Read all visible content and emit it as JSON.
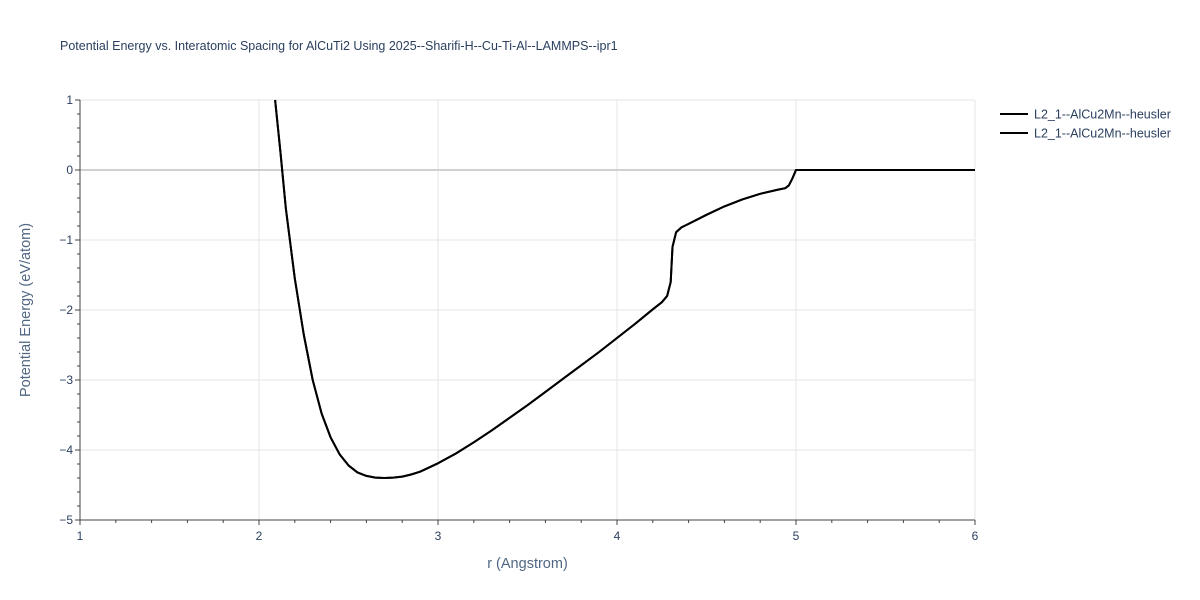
{
  "chart_data": {
    "type": "line",
    "title": "Potential Energy vs. Interatomic Spacing for AlCuTi2 Using 2025--Sharifi-H--Cu-Ti-Al--LAMMPS--ipr1",
    "xlabel": "r (Angstrom)",
    "ylabel": "Potential Energy (eV/atom)",
    "xlim": [
      1,
      6
    ],
    "ylim": [
      -5,
      1
    ],
    "xticks": [
      1,
      2,
      3,
      4,
      5,
      6
    ],
    "yticks": [
      1,
      0,
      -1,
      -2,
      -3,
      -4,
      -5
    ],
    "xtick_labels": [
      "1",
      "2",
      "3",
      "4",
      "5",
      "6"
    ],
    "ytick_labels": [
      "1",
      "0",
      "−1",
      "−2",
      "−3",
      "−4",
      "−5"
    ],
    "grid": true,
    "legend_position": "top-right",
    "series": [
      {
        "name": "L2_1--AlCu2Mn--heusler",
        "color": "#000000",
        "x": [
          2.09,
          2.12,
          2.15,
          2.2,
          2.25,
          2.3,
          2.35,
          2.4,
          2.45,
          2.5,
          2.55,
          2.6,
          2.65,
          2.7,
          2.75,
          2.8,
          2.85,
          2.9,
          3.0,
          3.1,
          3.2,
          3.3,
          3.4,
          3.5,
          3.6,
          3.7,
          3.8,
          3.9,
          4.0,
          4.1,
          4.2,
          4.25,
          4.28,
          4.3,
          4.31,
          4.33,
          4.36,
          4.4,
          4.5,
          4.6,
          4.7,
          4.8,
          4.9,
          4.94,
          4.96,
          4.98,
          5.0,
          5.5,
          6.0
        ],
        "y": [
          1.0,
          0.25,
          -0.55,
          -1.55,
          -2.35,
          -3.0,
          -3.48,
          -3.82,
          -4.06,
          -4.22,
          -4.32,
          -4.37,
          -4.395,
          -4.4,
          -4.395,
          -4.38,
          -4.35,
          -4.31,
          -4.19,
          -4.05,
          -3.89,
          -3.72,
          -3.54,
          -3.36,
          -3.17,
          -2.98,
          -2.79,
          -2.6,
          -2.4,
          -2.2,
          -1.99,
          -1.89,
          -1.8,
          -1.6,
          -1.1,
          -0.89,
          -0.82,
          -0.77,
          -0.64,
          -0.52,
          -0.42,
          -0.34,
          -0.28,
          -0.26,
          -0.22,
          -0.12,
          0.0,
          0.0,
          0.0
        ]
      },
      {
        "name": "L2_1--AlCu2Mn--heusler",
        "color": "#000000",
        "x": [
          2.09,
          2.12,
          2.15,
          2.2,
          2.25,
          2.3,
          2.35,
          2.4,
          2.45,
          2.5,
          2.55,
          2.6,
          2.65,
          2.7,
          2.75,
          2.8,
          2.85,
          2.9,
          3.0,
          3.1,
          3.2,
          3.3,
          3.4,
          3.5,
          3.6,
          3.7,
          3.8,
          3.9,
          4.0,
          4.1,
          4.2,
          4.25,
          4.28,
          4.3,
          4.31,
          4.33,
          4.36,
          4.4,
          4.5,
          4.6,
          4.7,
          4.8,
          4.9,
          4.94,
          4.96,
          4.98,
          5.0,
          5.5,
          6.0
        ],
        "y": [
          1.0,
          0.25,
          -0.55,
          -1.55,
          -2.35,
          -3.0,
          -3.48,
          -3.82,
          -4.06,
          -4.22,
          -4.32,
          -4.37,
          -4.395,
          -4.4,
          -4.395,
          -4.38,
          -4.35,
          -4.31,
          -4.19,
          -4.05,
          -3.89,
          -3.72,
          -3.54,
          -3.36,
          -3.17,
          -2.98,
          -2.79,
          -2.6,
          -2.4,
          -2.2,
          -1.99,
          -1.89,
          -1.8,
          -1.6,
          -1.1,
          -0.89,
          -0.82,
          -0.77,
          -0.64,
          -0.52,
          -0.42,
          -0.34,
          -0.28,
          -0.26,
          -0.22,
          -0.12,
          0.0,
          0.0,
          0.0
        ]
      }
    ]
  },
  "colors": {
    "grid": "#e6e6e6",
    "zeroline": "#d0d0d0",
    "axis_line": "#444444",
    "text": "#2a3f5f"
  }
}
